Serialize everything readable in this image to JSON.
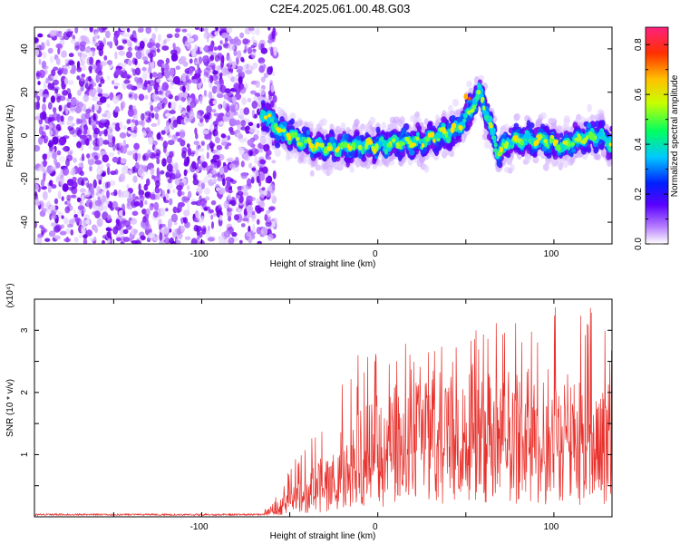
{
  "title": "C2E4.2025.061.00.48.G03",
  "chart_data": [
    {
      "type": "heatmap",
      "xlabel": "Height of straight line (km)",
      "ylabel": "Frequency (Hz)",
      "xlim": [
        -195,
        133
      ],
      "ylim": [
        -50,
        50
      ],
      "xticks": [
        "-100",
        "0",
        "100"
      ],
      "yticks": [
        "-40",
        "-20",
        "0",
        "20",
        "40"
      ],
      "colorbar": {
        "label": "Normalized spectral amplitude",
        "range": [
          0,
          0.87
        ],
        "ticks": [
          "0.0",
          "0.2",
          "0.4",
          "0.6",
          "0.8"
        ]
      },
      "noise_region_x": [
        -195,
        -62
      ],
      "trace": {
        "x": [
          -65,
          -55,
          -45,
          -35,
          -25,
          -15,
          -5,
          5,
          15,
          25,
          35,
          45,
          50,
          55,
          58,
          62,
          68,
          75,
          85,
          95,
          105,
          115,
          125,
          133
        ],
        "y": [
          10,
          2,
          -2,
          -5,
          -6,
          -5,
          -5,
          -4,
          -3,
          -3,
          0,
          3,
          8,
          15,
          20,
          10,
          -8,
          -3,
          -2,
          -2,
          -5,
          -2,
          0,
          -4
        ]
      },
      "peak": {
        "x": 58,
        "y": 20
      }
    },
    {
      "type": "line",
      "xlabel": "Height of straight line (km)",
      "ylabel": "SNR (10 * v/v)",
      "scale_label": "(x10⁴)",
      "xlim": [
        -195,
        133
      ],
      "ylim": [
        0,
        3.5
      ],
      "xticks": [
        "-100",
        "0",
        "100"
      ],
      "yticks": [
        "1",
        "2",
        "3"
      ],
      "color": "#e8312c",
      "envelope": {
        "x": [
          -195,
          -70,
          -60,
          -50,
          -40,
          -30,
          -20,
          -10,
          0,
          10,
          20,
          30,
          40,
          50,
          60,
          70,
          80,
          90,
          100,
          110,
          120,
          133
        ],
        "baseline": [
          0.03,
          0.03,
          0.1,
          0.25,
          0.35,
          0.5,
          0.7,
          0.85,
          1.0,
          1.1,
          1.2,
          1.3,
          1.35,
          1.35,
          1.3,
          1.3,
          1.3,
          1.25,
          1.25,
          1.2,
          1.2,
          1.1
        ],
        "peak": [
          0.05,
          0.05,
          0.2,
          0.8,
          1.2,
          1.6,
          2.6,
          2.6,
          2.7,
          2.9,
          2.8,
          2.9,
          2.9,
          3.1,
          3.3,
          3.1,
          3.3,
          3.4,
          3.5,
          3.3,
          3.4,
          2.9
        ]
      }
    }
  ]
}
